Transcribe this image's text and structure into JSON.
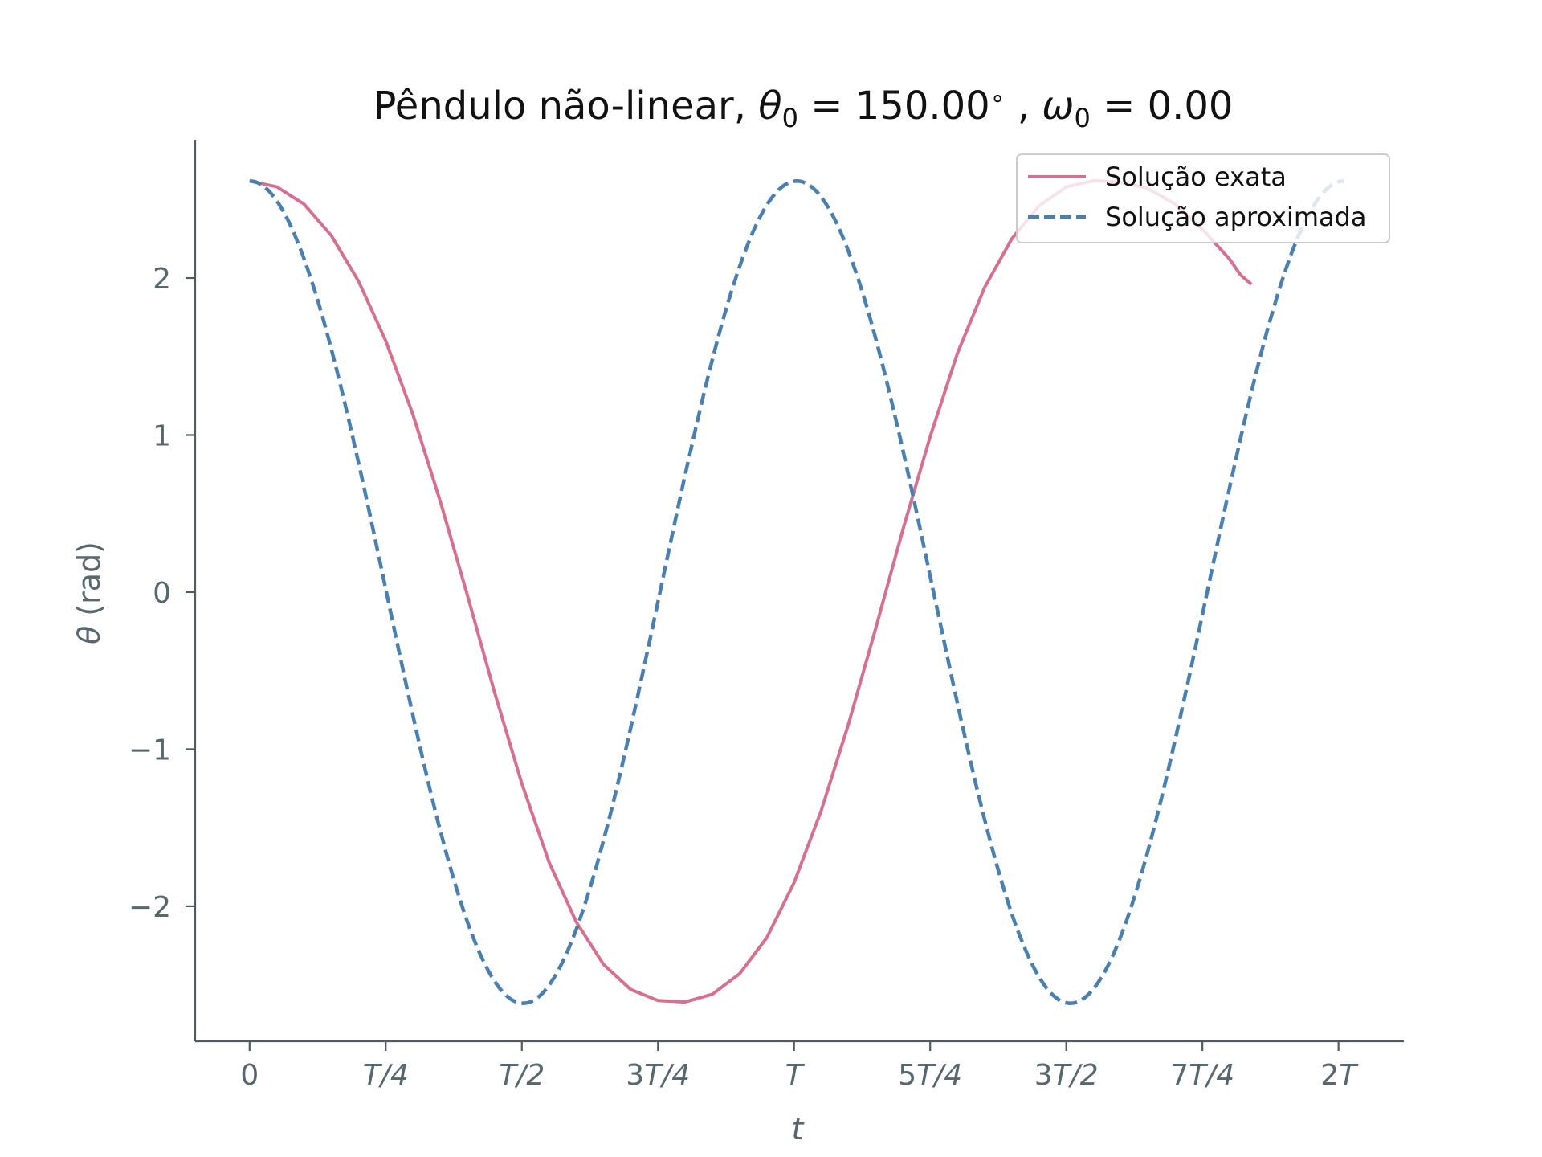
{
  "chart_data": {
    "type": "line",
    "title": {
      "main": "Pêndulo não-linear, ",
      "theta_sym": "θ",
      "theta_sub": "0",
      "theta_val": " = 150.00",
      "degree": "∘",
      "sep": " , ",
      "omega_sym": "ω",
      "omega_sub": "0",
      "omega_val": " = 0.00"
    },
    "xlabel": "t",
    "ylabel_sym": "θ",
    "ylabel_unit": " (rad)",
    "xlim": [
      -0.1,
      2.12
    ],
    "ylim": [
      -2.86,
      2.88
    ],
    "x_ticks": [
      {
        "value": 0,
        "num": "0",
        "sym": ""
      },
      {
        "value": 0.25,
        "num": "",
        "sym": "T/4"
      },
      {
        "value": 0.5,
        "num": "",
        "sym": "T/2"
      },
      {
        "value": 0.75,
        "num": "3",
        "sym": "T/4"
      },
      {
        "value": 1.0,
        "num": "",
        "sym": "T"
      },
      {
        "value": 1.25,
        "num": "5",
        "sym": "T/4"
      },
      {
        "value": 1.5,
        "num": "3",
        "sym": "T/2"
      },
      {
        "value": 1.75,
        "num": "7",
        "sym": "T/4"
      },
      {
        "value": 2.0,
        "num": "2",
        "sym": "T"
      }
    ],
    "y_ticks": [
      {
        "value": 2,
        "label": "2"
      },
      {
        "value": 1,
        "label": "1"
      },
      {
        "value": 0,
        "label": "0"
      },
      {
        "value": -1,
        "label": "−1"
      },
      {
        "value": -2,
        "label": "−2"
      }
    ],
    "grid": false,
    "legend_position": "top-right",
    "series": [
      {
        "name": "Solução exata",
        "color": "#d6708f",
        "style": "solid",
        "points": [
          [
            0.0,
            2.618
          ],
          [
            0.05,
            2.58
          ],
          [
            0.1,
            2.47
          ],
          [
            0.15,
            2.27
          ],
          [
            0.2,
            1.98
          ],
          [
            0.25,
            1.6
          ],
          [
            0.3,
            1.13
          ],
          [
            0.35,
            0.58
          ],
          [
            0.4,
            -0.02
          ],
          [
            0.45,
            -0.64
          ],
          [
            0.5,
            -1.22
          ],
          [
            0.55,
            -1.72
          ],
          [
            0.6,
            -2.1
          ],
          [
            0.65,
            -2.37
          ],
          [
            0.7,
            -2.53
          ],
          [
            0.75,
            -2.6
          ],
          [
            0.8,
            -2.61
          ],
          [
            0.85,
            -2.56
          ],
          [
            0.9,
            -2.43
          ],
          [
            0.95,
            -2.2
          ],
          [
            1.0,
            -1.85
          ],
          [
            1.05,
            -1.39
          ],
          [
            1.1,
            -0.84
          ],
          [
            1.15,
            -0.23
          ],
          [
            1.2,
            0.4
          ],
          [
            1.25,
            0.99
          ],
          [
            1.3,
            1.52
          ],
          [
            1.35,
            1.94
          ],
          [
            1.4,
            2.25
          ],
          [
            1.45,
            2.46
          ],
          [
            1.5,
            2.58
          ],
          [
            1.55,
            2.62
          ],
          [
            1.6,
            2.61
          ],
          [
            1.65,
            2.57
          ],
          [
            1.7,
            2.47
          ],
          [
            1.75,
            2.31
          ],
          [
            1.8,
            2.12
          ],
          [
            1.82,
            2.02
          ],
          [
            1.84,
            1.96
          ]
        ]
      },
      {
        "name": "Solução aproximada",
        "color": "#4a80b0",
        "style": "dashed",
        "amplitude": 2.618,
        "period": 1.005,
        "x_range": [
          0,
          2.01
        ]
      }
    ]
  }
}
